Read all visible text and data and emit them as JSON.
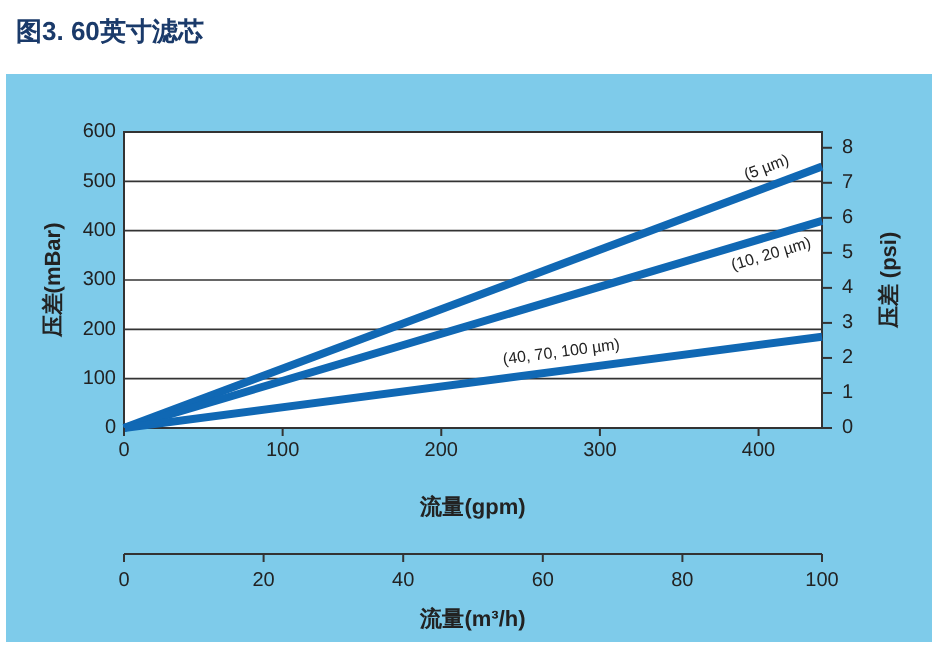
{
  "chart_data": {
    "type": "line",
    "title": "图3. 60英寸滤芯",
    "xlabel": "流量(gpm)",
    "ylabel": "压差(mBar)",
    "y2label": "压差 (psi)",
    "x2label": "流量(m³/h)",
    "xlim": [
      0,
      440
    ],
    "xticks": [
      0,
      100,
      200,
      300,
      400
    ],
    "ylim": [
      0,
      600
    ],
    "yticks": [
      0,
      100,
      200,
      300,
      400,
      500,
      600
    ],
    "y2lim": [
      0,
      8.45
    ],
    "y2ticks": [
      0,
      1,
      2,
      3,
      4,
      5,
      6,
      7,
      8
    ],
    "x2lim": [
      0,
      100
    ],
    "x2ticks": [
      0,
      20,
      40,
      60,
      80,
      100
    ],
    "grid": "y",
    "marker": "none",
    "line_style": "solid",
    "x": [
      0,
      440
    ],
    "series": [
      {
        "name": "(5 µm)",
        "color": "#1068b4",
        "values": [
          0,
          530
        ]
      },
      {
        "name": "(10, 20 µm)",
        "color": "#1068b4",
        "values": [
          0,
          420
        ]
      },
      {
        "name": "(40, 70, 100 µm)",
        "color": "#1068b4",
        "values": [
          0,
          185
        ]
      }
    ]
  }
}
